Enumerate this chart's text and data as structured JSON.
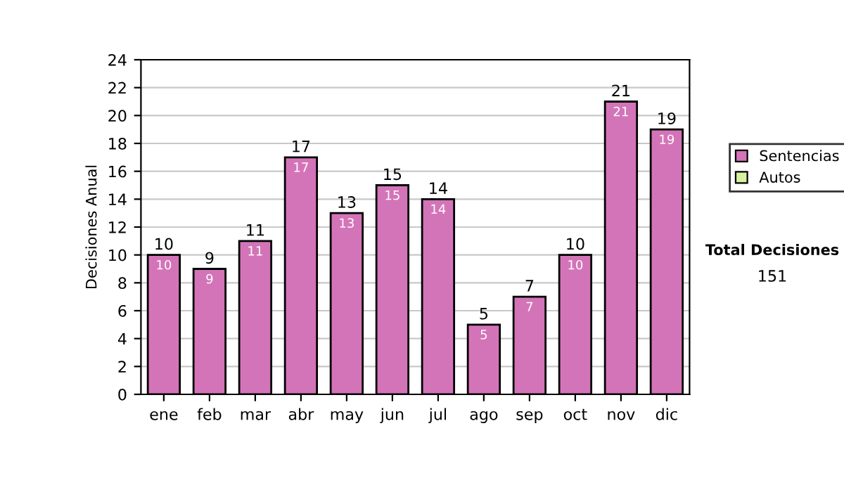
{
  "chart_data": {
    "type": "bar",
    "stacked": true,
    "ylabel": "Decisiones Anual",
    "categories": [
      "ene",
      "feb",
      "mar",
      "abr",
      "may",
      "jun",
      "jul",
      "ago",
      "sep",
      "oct",
      "nov",
      "dic"
    ],
    "series": [
      {
        "name": "Sentencias",
        "color": "#d474b8",
        "values": [
          10,
          9,
          11,
          17,
          13,
          15,
          14,
          5,
          7,
          10,
          21,
          19
        ],
        "value_labels": [
          "10",
          "9",
          "11",
          "17",
          "13",
          "15",
          "14",
          "5",
          "7",
          "10",
          "21",
          "19"
        ]
      },
      {
        "name": "Autos",
        "color": "#d8f0a0",
        "values": [
          0,
          0,
          0,
          0,
          0,
          0,
          0,
          0,
          0,
          0,
          0,
          0
        ]
      }
    ],
    "totals": [
      "10",
      "9",
      "11",
      "17",
      "13",
      "15",
      "14",
      "5",
      "7",
      "10",
      "21",
      "19"
    ],
    "ylim": [
      0,
      24
    ],
    "yticks": [
      0,
      2,
      4,
      6,
      8,
      10,
      12,
      14,
      16,
      18,
      20,
      22,
      24
    ],
    "grid": "y",
    "legend": "right",
    "annotations": [
      "Total Decisiones",
      "151"
    ]
  }
}
